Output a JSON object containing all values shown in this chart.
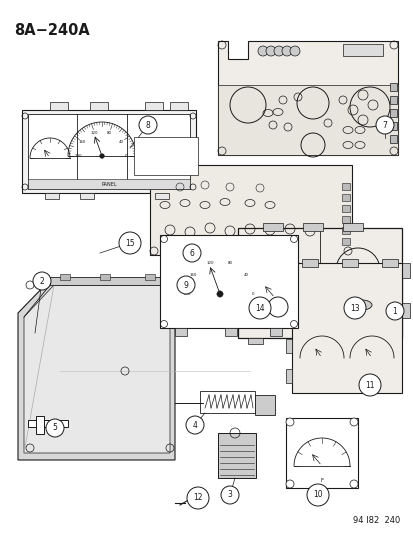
{
  "title": "8A−240A",
  "footer": "94 I82  240",
  "bg_color": "#ffffff",
  "line_color": "#1a1a1a",
  "fig_width": 4.14,
  "fig_height": 5.33,
  "dpi": 100
}
